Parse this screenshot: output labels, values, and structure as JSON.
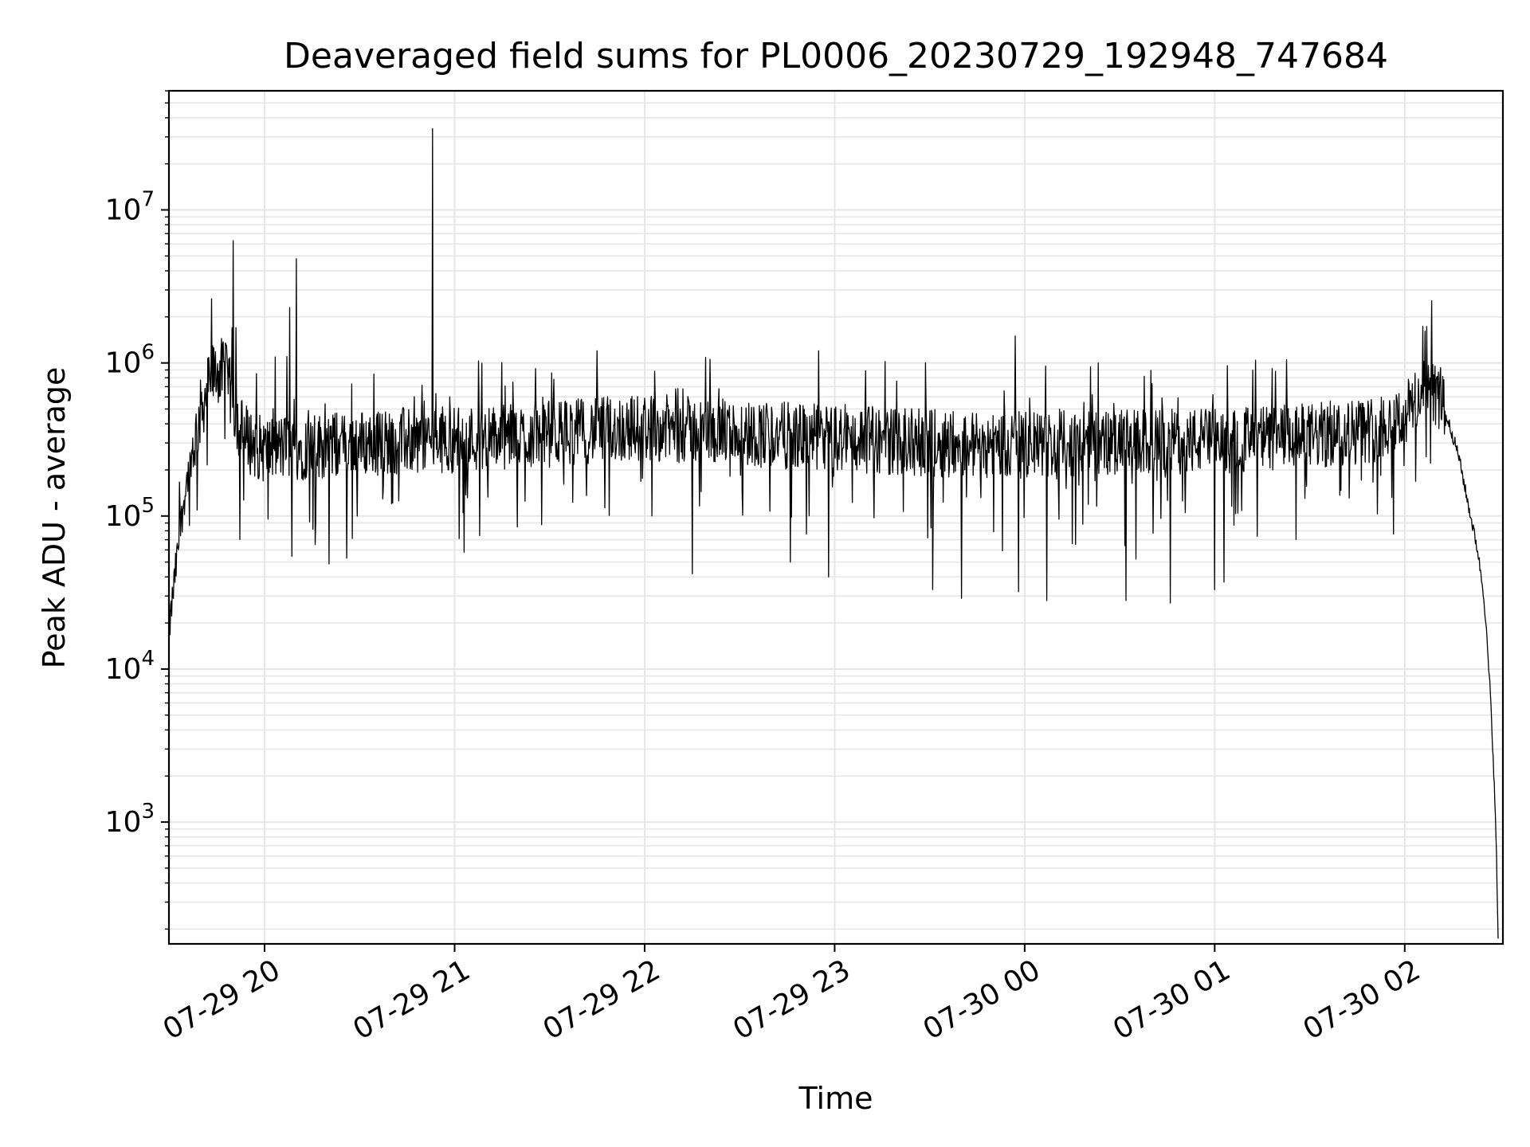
{
  "chart_data": {
    "type": "line",
    "title": "Deaveraged field sums for PL0006_20230729_192948_747684",
    "xlabel": "Time",
    "ylabel": "Peak ADU - average",
    "yscale": "log",
    "xlim": [
      "07-29 19:29:48",
      "07-30 02:31:00"
    ],
    "ylim": [
      160,
      60000000
    ],
    "grid": true,
    "line_color": "#000000",
    "grid_color": "#e6e6e6",
    "x_ticks": [
      {
        "label": "07-29 20",
        "value": "07-29 20:00"
      },
      {
        "label": "07-29 21",
        "value": "07-29 21:00"
      },
      {
        "label": "07-29 22",
        "value": "07-29 22:00"
      },
      {
        "label": "07-29 23",
        "value": "07-29 23:00"
      },
      {
        "label": "07-30 00",
        "value": "07-30 00:00"
      },
      {
        "label": "07-30 01",
        "value": "07-30 01:00"
      },
      {
        "label": "07-30 02",
        "value": "07-30 02:00"
      }
    ],
    "y_ticks": [
      {
        "base": "10",
        "exp": "3",
        "value": 1000
      },
      {
        "base": "10",
        "exp": "4",
        "value": 10000
      },
      {
        "base": "10",
        "exp": "5",
        "value": 100000
      },
      {
        "base": "10",
        "exp": "6",
        "value": 1000000
      },
      {
        "base": "10",
        "exp": "7",
        "value": 10000000
      }
    ],
    "series": [
      {
        "points": [
          [
            "07-29 19:29:48",
            17000
          ],
          [
            "07-29 19:31",
            30000
          ],
          [
            "07-29 19:33",
            70000
          ],
          [
            "07-29 19:35",
            150000
          ],
          [
            "07-29 19:37",
            250000
          ],
          [
            "07-29 19:40",
            500000
          ],
          [
            "07-29 19:43",
            800000
          ],
          [
            "07-29 19:46",
            900000
          ],
          [
            "07-29 19:48",
            800000
          ],
          [
            "07-29 19:50",
            550000
          ],
          [
            "07-29 19:53",
            350000
          ],
          [
            "07-29 19:56",
            300000
          ],
          [
            "07-29 20:00",
            270000
          ],
          [
            "07-29 20:05",
            280000
          ],
          [
            "07-29 20:10",
            280000
          ],
          [
            "07-29 20:20",
            290000
          ],
          [
            "07-29 20:30",
            300000
          ],
          [
            "07-29 20:45",
            310000
          ],
          [
            "07-29 21:00",
            320000
          ],
          [
            "07-29 21:20",
            330000
          ],
          [
            "07-29 21:40",
            360000
          ],
          [
            "07-29 22:00",
            380000
          ],
          [
            "07-29 22:20",
            360000
          ],
          [
            "07-29 22:40",
            340000
          ],
          [
            "07-29 23:00",
            320000
          ],
          [
            "07-29 23:30",
            300000
          ],
          [
            "07-30 00:00",
            290000
          ],
          [
            "07-30 00:30",
            300000
          ],
          [
            "07-30 01:00",
            310000
          ],
          [
            "07-30 01:30",
            330000
          ],
          [
            "07-30 01:50",
            370000
          ],
          [
            "07-30 02:00",
            450000
          ],
          [
            "07-30 02:04",
            600000
          ],
          [
            "07-30 02:08",
            650000
          ],
          [
            "07-30 02:11",
            600000
          ],
          [
            "07-30 02:14",
            400000
          ],
          [
            "07-30 02:17",
            250000
          ],
          [
            "07-30 02:20",
            120000
          ],
          [
            "07-30 02:23",
            60000
          ],
          [
            "07-30 02:25",
            30000
          ],
          [
            "07-30 02:26",
            15000
          ],
          [
            "07-30 02:27",
            7000
          ],
          [
            "07-30 02:28",
            2500
          ],
          [
            "07-30 02:29",
            600
          ],
          [
            "07-30 02:29:30",
            160
          ]
        ]
      }
    ],
    "spikes": [
      [
        "07-29 19:50",
        6300000
      ],
      [
        "07-29 19:51",
        1700000
      ],
      [
        "07-29 20:07",
        1100000
      ],
      [
        "07-29 20:08",
        2300000
      ],
      [
        "07-29 20:10",
        4800000
      ],
      [
        "07-29 20:53",
        34000000
      ],
      [
        "07-29 21:45",
        1200000
      ],
      [
        "07-29 22:55",
        1200000
      ],
      [
        "07-29 23:57",
        1500000
      ]
    ],
    "dips": [
      [
        "07-29 20:16",
        65000
      ],
      [
        "07-29 20:26",
        53000
      ],
      [
        "07-29 21:03",
        58000
      ],
      [
        "07-29 22:15",
        42000
      ],
      [
        "07-29 22:46",
        50000
      ],
      [
        "07-29 22:58",
        40000
      ],
      [
        "07-29 23:31",
        33000
      ],
      [
        "07-29 23:40",
        29000
      ],
      [
        "07-29 23:58",
        32000
      ],
      [
        "07-30 00:07",
        28000
      ],
      [
        "07-30 00:32",
        28000
      ],
      [
        "07-30 00:46",
        27000
      ],
      [
        "07-30 01:00",
        33000
      ],
      [
        "07-30 01:03",
        37000
      ]
    ]
  }
}
